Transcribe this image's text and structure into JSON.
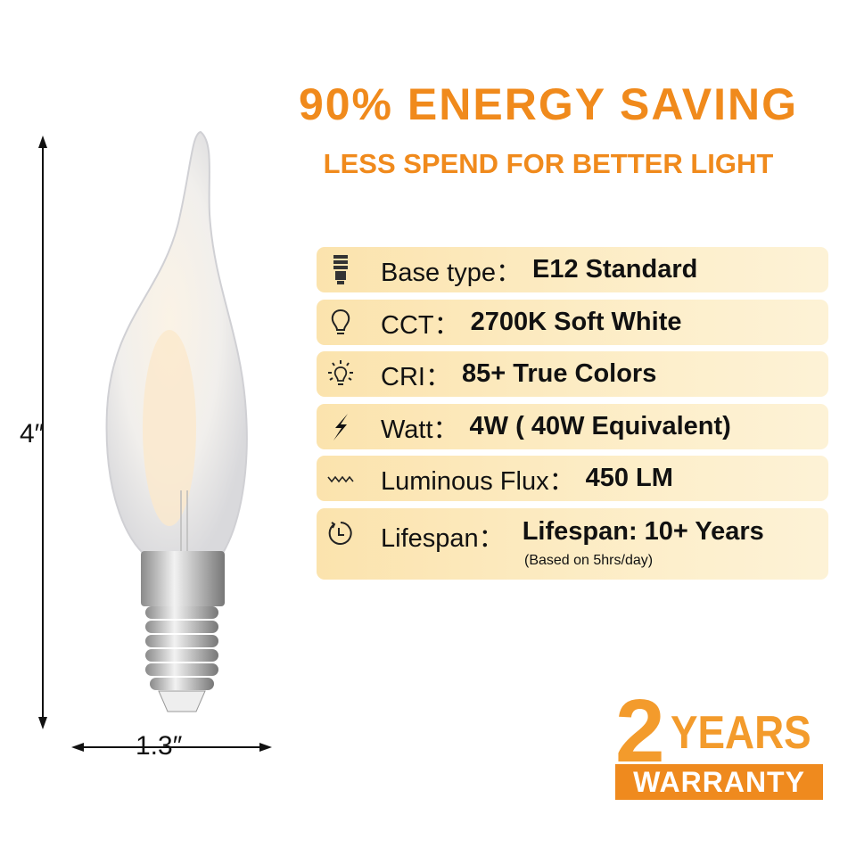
{
  "header": {
    "title": "90% ENERGY SAVING",
    "subtitle": "LESS SPEND FOR BETTER LIGHT"
  },
  "dimensions": {
    "height": "4″",
    "width": "1.3″"
  },
  "specs": [
    {
      "icon": "bulb-base-icon",
      "label": "Base type：",
      "value": "E12 Standard"
    },
    {
      "icon": "bulb-icon",
      "label": "CCT：",
      "value": "2700K Soft White"
    },
    {
      "icon": "bright-bulb-icon",
      "label": "CRI：",
      "value": "85+  True Colors"
    },
    {
      "icon": "lightning-icon",
      "label": "Watt：",
      "value": "4W ( 40W Equivalent)"
    },
    {
      "icon": "wave-icon",
      "label": "Luminous Flux：",
      "value": "450 LM"
    },
    {
      "icon": "clock-icon",
      "label": "Lifespan：",
      "value": " Lifespan: 10+ Years",
      "note": "(Based on 5hrs/day)"
    }
  ],
  "warranty": {
    "number": "2",
    "years": "YEARS",
    "label": "WARRANTY"
  },
  "colors": {
    "accent": "#f08a1c",
    "row_bg": "#fbe3ad"
  }
}
